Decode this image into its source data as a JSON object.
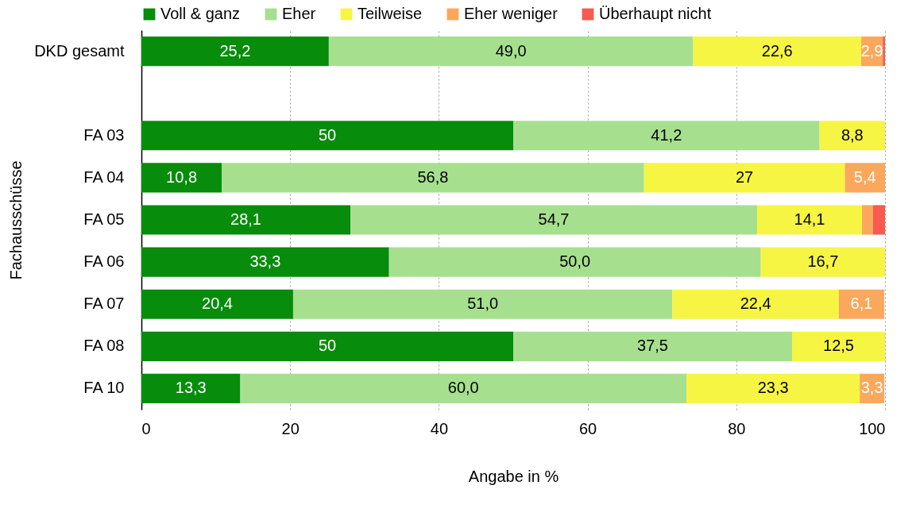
{
  "chart_data": {
    "type": "bar",
    "orientation": "horizontal",
    "stacked": true,
    "xlabel": "Angabe in %",
    "ylabel": "Fachausschüsse",
    "categories": [
      "DKD gesamt",
      null,
      "FA 03",
      "FA 04",
      "FA 05",
      "FA 06",
      "FA 07",
      "FA 08",
      "FA 10"
    ],
    "series": [
      {
        "name": "Voll & ganz",
        "color": "#078c0b",
        "values": [
          25.2,
          null,
          50,
          10.8,
          28.1,
          33.3,
          20.4,
          50,
          13.3
        ],
        "value_labels": [
          "25,2",
          null,
          "50",
          "10,8",
          "28,1",
          "33,3",
          "20,4",
          "50",
          "13,3"
        ]
      },
      {
        "name": "Eher",
        "color": "#a6e08f",
        "values": [
          49.0,
          null,
          41.2,
          56.8,
          54.7,
          50.0,
          51.0,
          37.5,
          60.0
        ],
        "value_labels": [
          "49,0",
          null,
          "41,2",
          "56,8",
          "54,7",
          "50,0",
          "51,0",
          "37,5",
          "60,0"
        ]
      },
      {
        "name": "Teilweise",
        "color": "#f7f543",
        "values": [
          22.6,
          null,
          8.8,
          27,
          14.1,
          16.7,
          22.4,
          12.5,
          23.3
        ],
        "value_labels": [
          "22,6",
          null,
          "8,8",
          "27",
          "14,1",
          "16,7",
          "22,4",
          "12,5",
          "23,3"
        ]
      },
      {
        "name": "Eher weniger",
        "color": "#fba85c",
        "values": [
          2.9,
          null,
          0,
          5.4,
          1.5,
          0,
          6.1,
          0,
          3.3
        ],
        "value_labels": [
          "2,9",
          null,
          null,
          "5,4",
          null,
          null,
          "6,1",
          null,
          "3,3"
        ]
      },
      {
        "name": "Überhaupt nicht",
        "color": "#f85a50",
        "values": [
          0.3,
          null,
          0,
          0,
          1.6,
          0,
          0,
          0,
          0
        ]
      }
    ],
    "xlim": [
      0,
      100
    ],
    "xticks": [
      0,
      20,
      40,
      60,
      80,
      100
    ],
    "grid": "x",
    "legend": "top"
  }
}
